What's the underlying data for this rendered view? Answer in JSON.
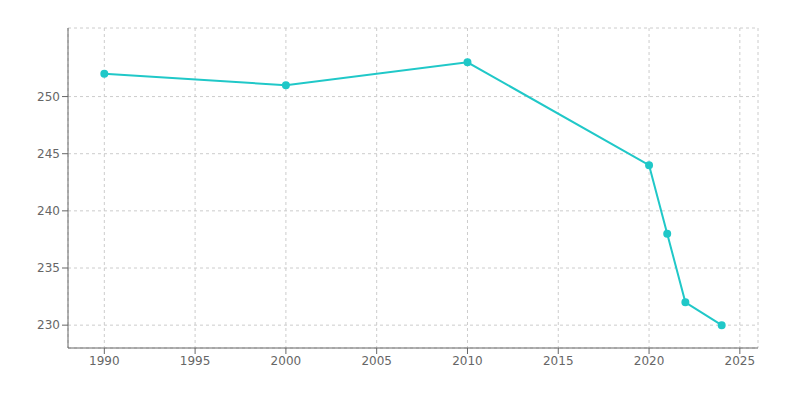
{
  "chart_data": {
    "type": "line",
    "x": [
      1990,
      2000,
      2010,
      2020,
      2021,
      2022,
      2024
    ],
    "values": [
      252,
      251,
      253,
      244,
      238,
      232,
      230
    ],
    "color": "#20c8c8",
    "marker": "circle",
    "xlim": [
      1988,
      2026
    ],
    "ylim": [
      228,
      256
    ],
    "xticks": [
      1990,
      1995,
      2000,
      2005,
      2010,
      2015,
      2020,
      2025
    ],
    "yticks": [
      230,
      235,
      240,
      245,
      250
    ],
    "grid": true
  }
}
